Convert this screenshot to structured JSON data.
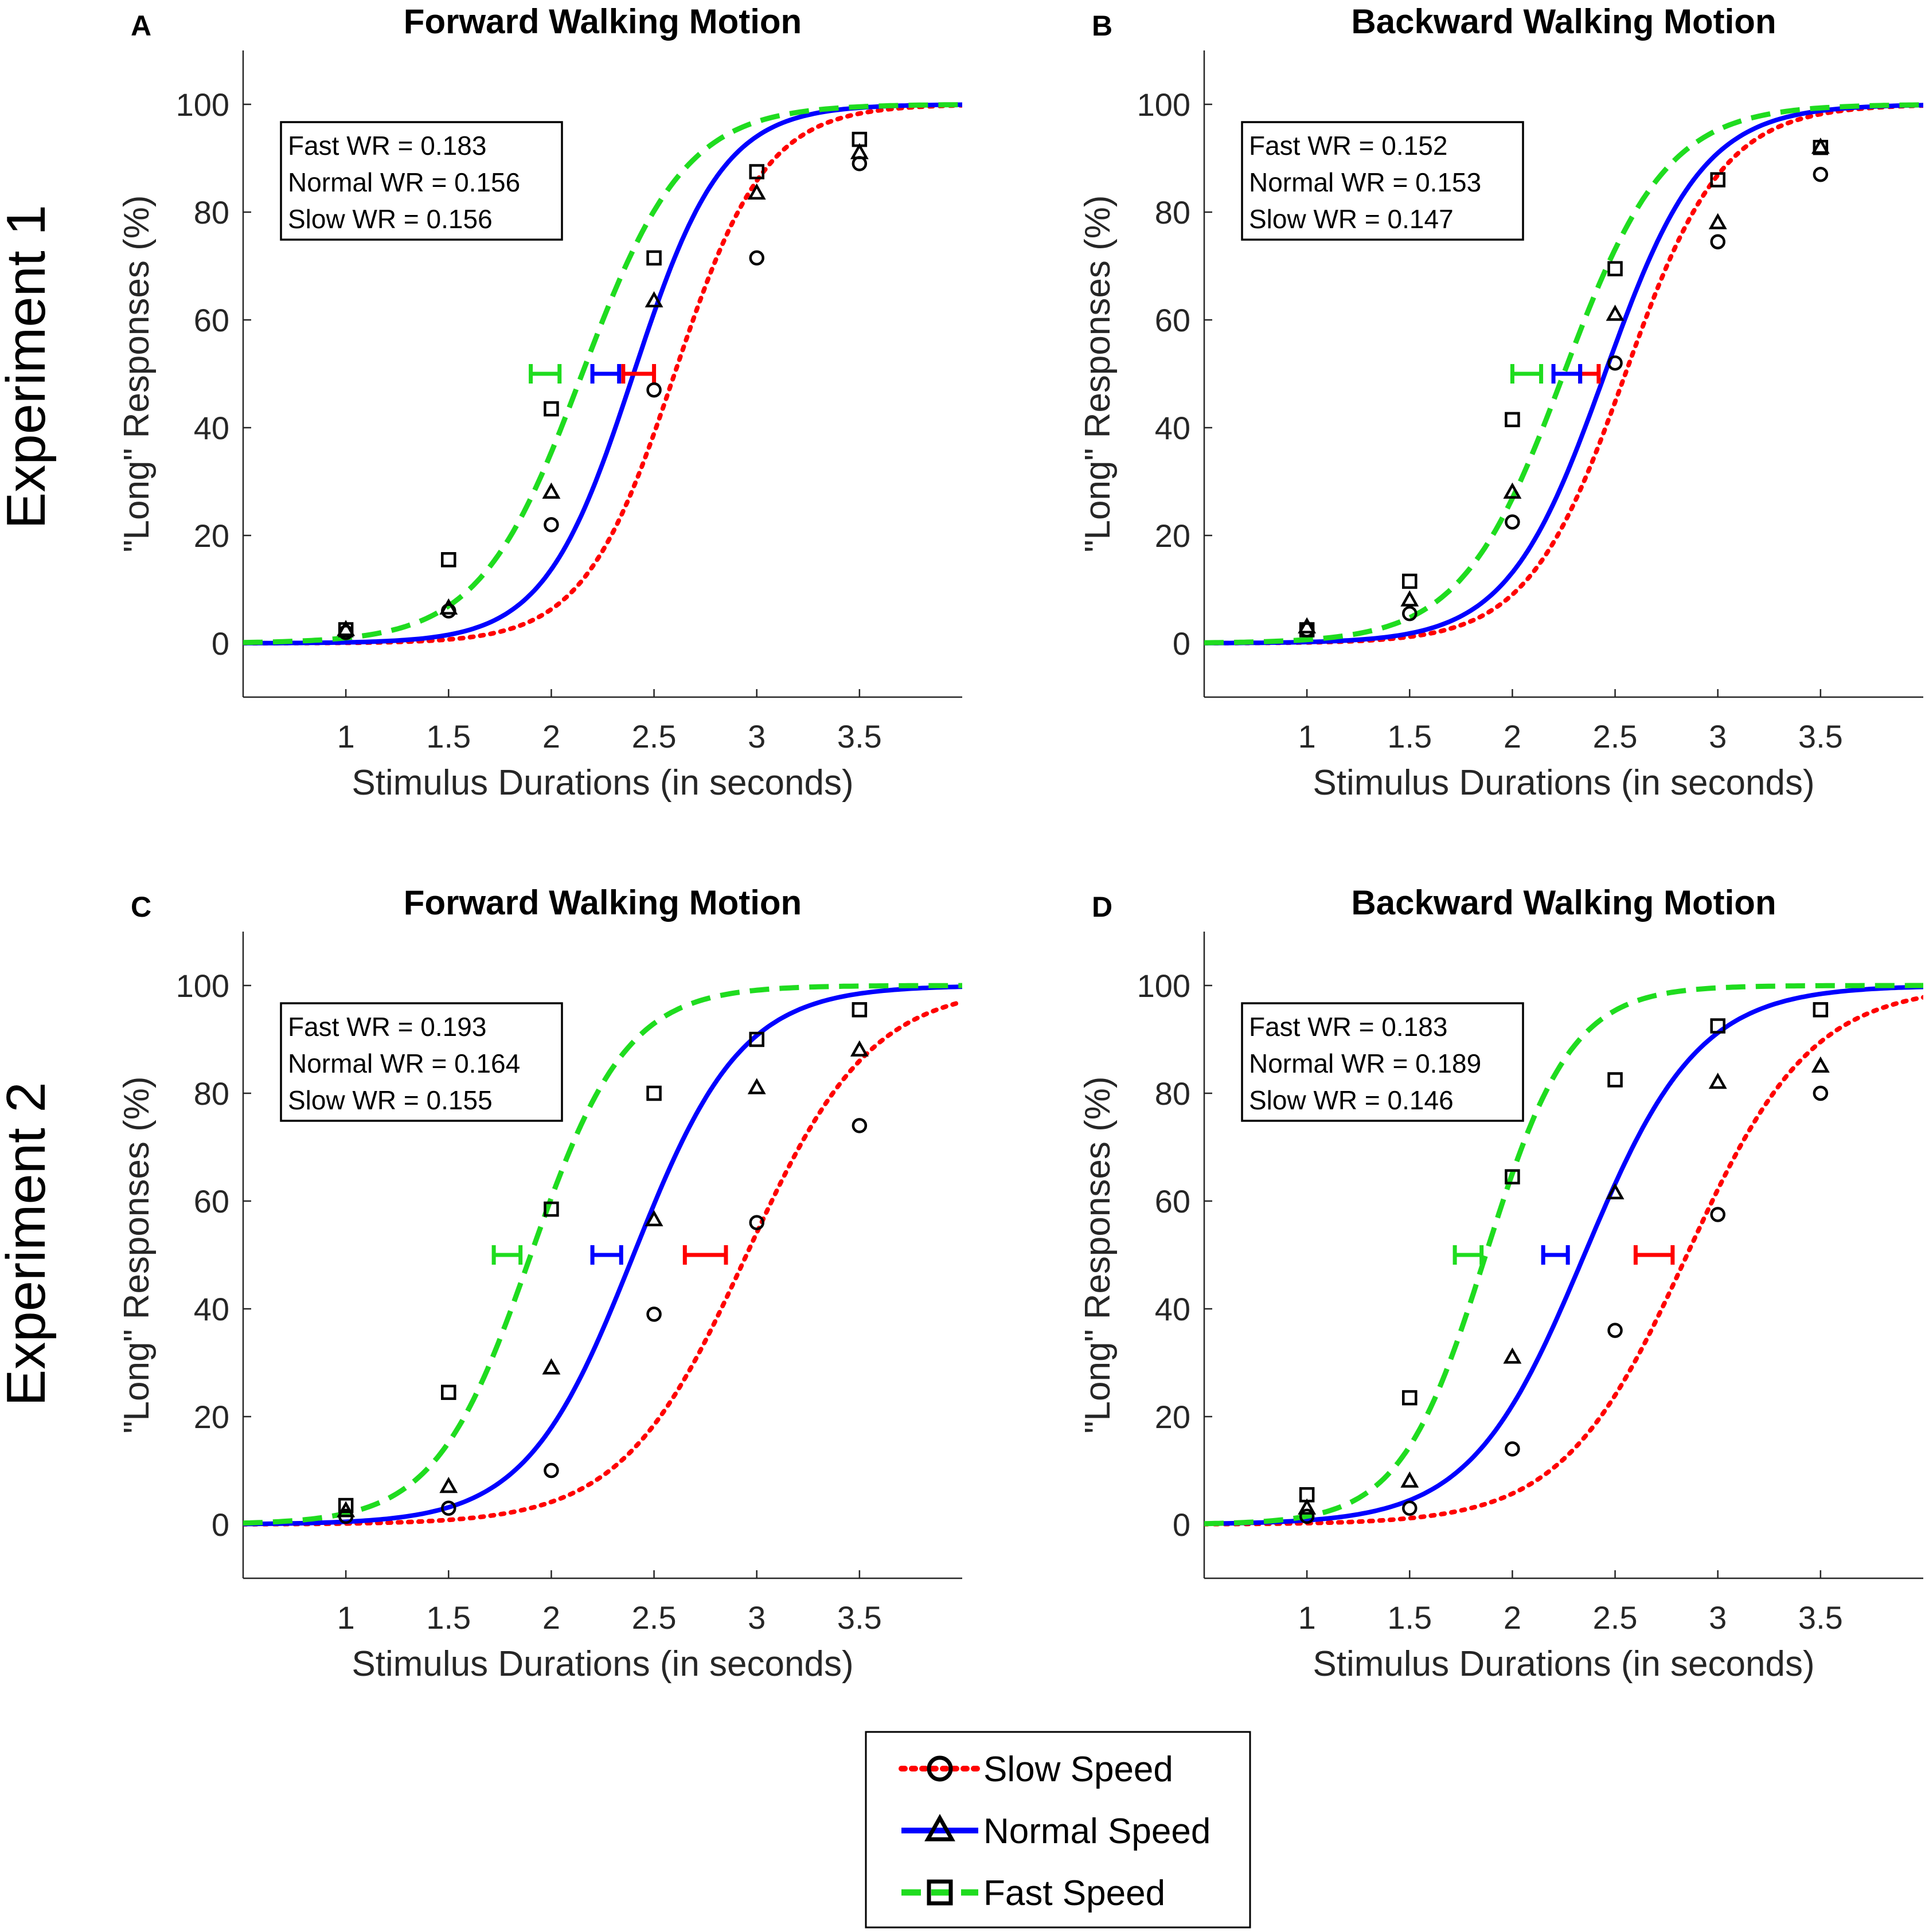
{
  "row_labels": [
    "Experiment 1",
    "Experiment 2"
  ],
  "colors": {
    "slow": "#ff0000",
    "normal": "#0000ff",
    "fast": "#1fdc1f",
    "markers": "#000000",
    "axes": "#262626",
    "text": "#000000"
  },
  "legend": {
    "items": [
      {
        "label": "Slow Speed",
        "series": "slow",
        "marker": "circle",
        "line": "dotted"
      },
      {
        "label": "Normal Speed",
        "series": "normal",
        "marker": "triangle",
        "line": "solid"
      },
      {
        "label": "Fast Speed",
        "series": "fast",
        "marker": "square",
        "line": "dashed"
      }
    ]
  },
  "chart_data": [
    {
      "type": "scatter",
      "panel": "A",
      "title": "Forward Walking Motion",
      "xlabel": "Stimulus Durations (in seconds)",
      "ylabel": "\"Long\" Responses (%)",
      "xlim": [
        0.5,
        4.0
      ],
      "ylim": [
        -10,
        110
      ],
      "xticks": [
        1,
        1.5,
        2,
        2.5,
        3,
        3.5
      ],
      "yticks": [
        0,
        20,
        40,
        60,
        80,
        100
      ],
      "wr_text": [
        "Fast WR = 0.183",
        "Normal WR = 0.156",
        "Slow WR = 0.156"
      ],
      "x": [
        1,
        1.5,
        2,
        2.5,
        3,
        3.5
      ],
      "series": [
        {
          "name": "Slow Speed",
          "key": "slow",
          "values": [
            2,
            6,
            22,
            47,
            71.5,
            89
          ],
          "pse": 2.6,
          "slope": 4.5,
          "err": [
            2.35,
            2.5
          ]
        },
        {
          "name": "Normal Speed",
          "key": "normal",
          "values": [
            2.5,
            6.5,
            28,
            63.5,
            83.5,
            91
          ],
          "pse": 2.4,
          "slope": 4.6,
          "err": [
            2.2,
            2.33
          ]
        },
        {
          "name": "Fast Speed",
          "key": "fast",
          "values": [
            2.5,
            15.5,
            43.5,
            71.5,
            87.5,
            93.5
          ],
          "pse": 2.15,
          "slope": 4.0,
          "err": [
            1.9,
            2.04
          ]
        }
      ]
    },
    {
      "type": "scatter",
      "panel": "B",
      "title": "Backward Walking Motion",
      "xlabel": "Stimulus Durations (in seconds)",
      "ylabel": "\"Long\" Responses (%)",
      "xlim": [
        0.5,
        4.0
      ],
      "ylim": [
        -10,
        110
      ],
      "xticks": [
        1,
        1.5,
        2,
        2.5,
        3,
        3.5
      ],
      "yticks": [
        0,
        20,
        40,
        60,
        80,
        100
      ],
      "wr_text": [
        "Fast WR = 0.152",
        "Normal WR = 0.153",
        "Slow WR = 0.147"
      ],
      "x": [
        1,
        1.5,
        2,
        2.5,
        3,
        3.5
      ],
      "series": [
        {
          "name": "Slow Speed",
          "key": "slow",
          "values": [
            2.5,
            5.5,
            22.5,
            52,
            74.5,
            87
          ],
          "pse": 2.55,
          "slope": 4.2,
          "err": [
            2.33,
            2.42
          ]
        },
        {
          "name": "Normal Speed",
          "key": "normal",
          "values": [
            3,
            8,
            28,
            61,
            78,
            92
          ],
          "pse": 2.45,
          "slope": 4.2,
          "err": [
            2.2,
            2.33
          ]
        },
        {
          "name": "Fast Speed",
          "key": "fast",
          "values": [
            2.5,
            11.5,
            41.5,
            69.5,
            86,
            92
          ],
          "pse": 2.25,
          "slope": 4.0,
          "err": [
            2.0,
            2.14
          ]
        }
      ]
    },
    {
      "type": "scatter",
      "panel": "C",
      "title": "Forward Walking Motion",
      "xlabel": "Stimulus Durations (in seconds)",
      "ylabel": "\"Long\" Responses (%)",
      "xlim": [
        0.5,
        4.0
      ],
      "ylim": [
        -10,
        110
      ],
      "xticks": [
        1,
        1.5,
        2,
        2.5,
        3,
        3.5
      ],
      "yticks": [
        0,
        20,
        40,
        60,
        80,
        100
      ],
      "wr_text": [
        "Fast WR = 0.193",
        "Normal WR = 0.164",
        "Slow WR = 0.155"
      ],
      "x": [
        1,
        1.5,
        2,
        2.5,
        3,
        3.5
      ],
      "series": [
        {
          "name": "Slow Speed",
          "key": "slow",
          "values": [
            1.5,
            3,
            10,
            39,
            56,
            74
          ],
          "pse": 2.95,
          "slope": 3.3,
          "err": [
            2.65,
            2.85
          ]
        },
        {
          "name": "Normal Speed",
          "key": "normal",
          "values": [
            2.5,
            7,
            29,
            56.5,
            81,
            88
          ],
          "pse": 2.4,
          "slope": 3.8,
          "err": [
            2.2,
            2.34
          ]
        },
        {
          "name": "Fast Speed",
          "key": "fast",
          "values": [
            3.5,
            24.5,
            58.5,
            80,
            90,
            95.5
          ],
          "pse": 1.9,
          "slope": 4.3,
          "err": [
            1.72,
            1.85
          ]
        }
      ]
    },
    {
      "type": "scatter",
      "panel": "D",
      "title": "Backward Walking Motion",
      "xlabel": "Stimulus Durations (in seconds)",
      "ylabel": "\"Long\" Responses (%)",
      "xlim": [
        0.5,
        4.0
      ],
      "ylim": [
        -10,
        110
      ],
      "xticks": [
        1,
        1.5,
        2,
        2.5,
        3,
        3.5
      ],
      "yticks": [
        0,
        20,
        40,
        60,
        80,
        100
      ],
      "wr_text": [
        "Fast WR = 0.183",
        "Normal WR = 0.189",
        "Slow WR = 0.146"
      ],
      "x": [
        1,
        1.5,
        2,
        2.5,
        3,
        3.5
      ],
      "series": [
        {
          "name": "Slow Speed",
          "key": "slow",
          "values": [
            1.5,
            3,
            14,
            36,
            57.5,
            80
          ],
          "pse": 2.85,
          "slope": 3.3,
          "err": [
            2.6,
            2.78
          ]
        },
        {
          "name": "Normal Speed",
          "key": "normal",
          "values": [
            3,
            8,
            31,
            61.5,
            82,
            85
          ],
          "pse": 2.35,
          "slope": 3.6,
          "err": [
            2.15,
            2.27
          ]
        },
        {
          "name": "Fast Speed",
          "key": "fast",
          "values": [
            5.5,
            23.5,
            64.5,
            82.5,
            92.5,
            95.5
          ],
          "pse": 1.87,
          "slope": 4.8,
          "err": [
            1.72,
            1.85
          ]
        }
      ]
    }
  ]
}
